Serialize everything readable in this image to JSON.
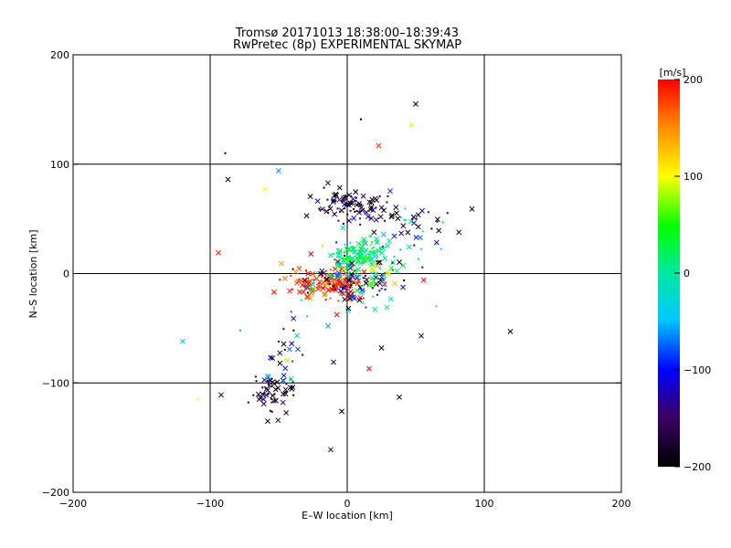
{
  "chart_data": {
    "type": "scatter",
    "title": "Tromsø 20171013 18:38:00–18:39:43",
    "subtitle": "RwPretec (8p) EXPERIMENTAL SKYMAP",
    "xlabel": "E–W location [km]",
    "ylabel": "N–S location [km]",
    "xlim": [
      -200,
      200
    ],
    "ylim": [
      -200,
      200
    ],
    "xticks": [
      -200,
      -100,
      0,
      100,
      200
    ],
    "yticks": [
      -200,
      -100,
      0,
      100,
      200
    ],
    "grid": true,
    "colorbar": {
      "label": "[m/s]",
      "range": [
        -200,
        200
      ],
      "ticks": [
        200,
        100,
        0,
        -100,
        -200
      ],
      "placement": "right"
    },
    "markers": [
      "x",
      "dot"
    ],
    "clusters": [
      {
        "name": "north",
        "cx": 5,
        "cy": 62,
        "sx": 14,
        "sy": 8,
        "n": 90,
        "vmean": -175,
        "vsd": 40
      },
      {
        "name": "center-green",
        "cx": 8,
        "cy": 16,
        "sx": 12,
        "sy": 8,
        "n": 130,
        "vmean": 15,
        "vsd": 25
      },
      {
        "name": "center-red",
        "cx": -15,
        "cy": -10,
        "sx": 14,
        "sy": 6,
        "n": 130,
        "vmean": 185,
        "vsd": 25
      },
      {
        "name": "center-mix",
        "cx": 5,
        "cy": -5,
        "sx": 18,
        "sy": 12,
        "n": 140,
        "vmean": -60,
        "vsd": 140
      },
      {
        "name": "east",
        "cx": 45,
        "cy": 45,
        "sx": 15,
        "sy": 10,
        "n": 40,
        "vmean": -140,
        "vsd": 80
      },
      {
        "name": "south-west",
        "cx": -55,
        "cy": -110,
        "sx": 8,
        "sy": 10,
        "n": 55,
        "vmean": -190,
        "vsd": 30
      },
      {
        "name": "south-trail",
        "cx": -45,
        "cy": -75,
        "sx": 6,
        "sy": 18,
        "n": 25,
        "vmean": -120,
        "vsd": 80
      }
    ],
    "outliers": [
      {
        "x": 50,
        "y": 155,
        "v": -200,
        "m": "x"
      },
      {
        "x": 47,
        "y": 136,
        "v": 110,
        "m": "x"
      },
      {
        "x": 23,
        "y": 117,
        "v": 190,
        "m": "x"
      },
      {
        "x": 10,
        "y": 141,
        "v": -200,
        "m": "dot"
      },
      {
        "x": -89,
        "y": 110,
        "v": -200,
        "m": "dot"
      },
      {
        "x": -87,
        "y": 86,
        "v": -200,
        "m": "x"
      },
      {
        "x": -50,
        "y": 94,
        "v": -60,
        "m": "x"
      },
      {
        "x": -60,
        "y": 77,
        "v": 100,
        "m": "x"
      },
      {
        "x": 91,
        "y": 59,
        "v": -200,
        "m": "x"
      },
      {
        "x": -94,
        "y": 19,
        "v": 190,
        "m": "x"
      },
      {
        "x": -120,
        "y": -62,
        "v": -50,
        "m": "x"
      },
      {
        "x": 119,
        "y": -53,
        "v": -200,
        "m": "x"
      },
      {
        "x": 65,
        "y": -30,
        "v": 60,
        "m": "dot"
      },
      {
        "x": 54,
        "y": -57,
        "v": -130,
        "m": "x"
      },
      {
        "x": 25,
        "y": -68,
        "v": -200,
        "m": "x"
      },
      {
        "x": 16,
        "y": -87,
        "v": 195,
        "m": "x"
      },
      {
        "x": -10,
        "y": -81,
        "v": -150,
        "m": "x"
      },
      {
        "x": -109,
        "y": -115,
        "v": 110,
        "m": "dot"
      },
      {
        "x": -92,
        "y": -111,
        "v": -170,
        "m": "x"
      },
      {
        "x": 38,
        "y": -113,
        "v": -200,
        "m": "x"
      },
      {
        "x": -4,
        "y": -126,
        "v": -200,
        "m": "x"
      },
      {
        "x": -12,
        "y": -161,
        "v": -160,
        "m": "x"
      },
      {
        "x": -58,
        "y": -135,
        "v": -200,
        "m": "x"
      },
      {
        "x": -78,
        "y": -52,
        "v": -50,
        "m": "dot"
      },
      {
        "x": -14,
        "y": -48,
        "v": -60,
        "m": "x"
      }
    ]
  }
}
